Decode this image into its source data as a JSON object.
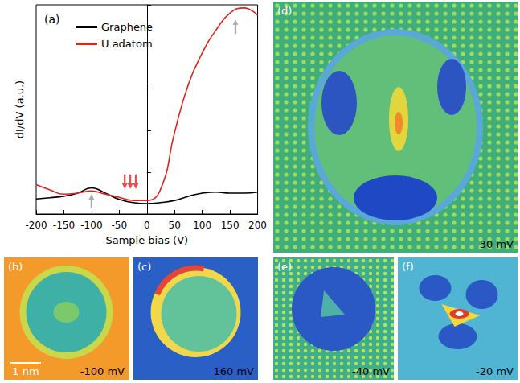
{
  "chart_data": {
    "type": "line",
    "panel": "(a)",
    "x_label": "Sample bias (V)",
    "y_label": "dI/dV (a.u.)",
    "x": [
      -200,
      -175,
      -150,
      -125,
      -100,
      -75,
      -50,
      -25,
      0,
      25,
      50,
      75,
      100,
      125,
      150,
      175,
      200
    ],
    "series": [
      {
        "name": "Graphene",
        "color": "#000000",
        "values": [
          0.72,
          0.78,
          0.85,
          1.0,
          1.25,
          1.0,
          0.7,
          0.55,
          0.5,
          0.55,
          0.65,
          0.85,
          1.0,
          1.05,
          1.0,
          1.0,
          1.05
        ]
      },
      {
        "name": "U adatom",
        "color": "#e0241c",
        "values": [
          1.4,
          1.15,
          0.95,
          1.0,
          1.1,
          0.95,
          0.8,
          0.65,
          0.65,
          1.2,
          3.9,
          6.2,
          7.7,
          8.8,
          9.6,
          9.85,
          9.5
        ]
      }
    ],
    "xlim": [
      -200,
      200
    ],
    "xticks": [
      -200,
      -150,
      -100,
      -50,
      0,
      50,
      100,
      150,
      200
    ],
    "ylim": [
      0,
      10
    ],
    "yticks": [
      0,
      2,
      4,
      6,
      8,
      10
    ],
    "tick_labels": "x",
    "grid": false,
    "legend": "upper left",
    "arrows": [
      {
        "x": -100,
        "y": 0.95,
        "direction": "up",
        "color": "#999999"
      },
      {
        "x": -40,
        "y": 1.2,
        "direction": "down",
        "color": "#e0241c"
      },
      {
        "x": -30,
        "y": 1.2,
        "direction": "down",
        "color": "#e0241c"
      },
      {
        "x": -20,
        "y": 1.2,
        "direction": "down",
        "color": "#e0241c"
      },
      {
        "x": 160,
        "y": 9.3,
        "direction": "up",
        "color": "#999999"
      }
    ]
  },
  "images": [
    {
      "panel": "(b)",
      "bias": "-100 mV",
      "scale_bar": "1 nm"
    },
    {
      "panel": "(c)",
      "bias": "160 mV"
    },
    {
      "panel": "(d)",
      "bias": "-30 mV"
    },
    {
      "panel": "(e)",
      "bias": "-40 mV"
    },
    {
      "panel": "(f)",
      "bias": "-20 mV"
    }
  ]
}
